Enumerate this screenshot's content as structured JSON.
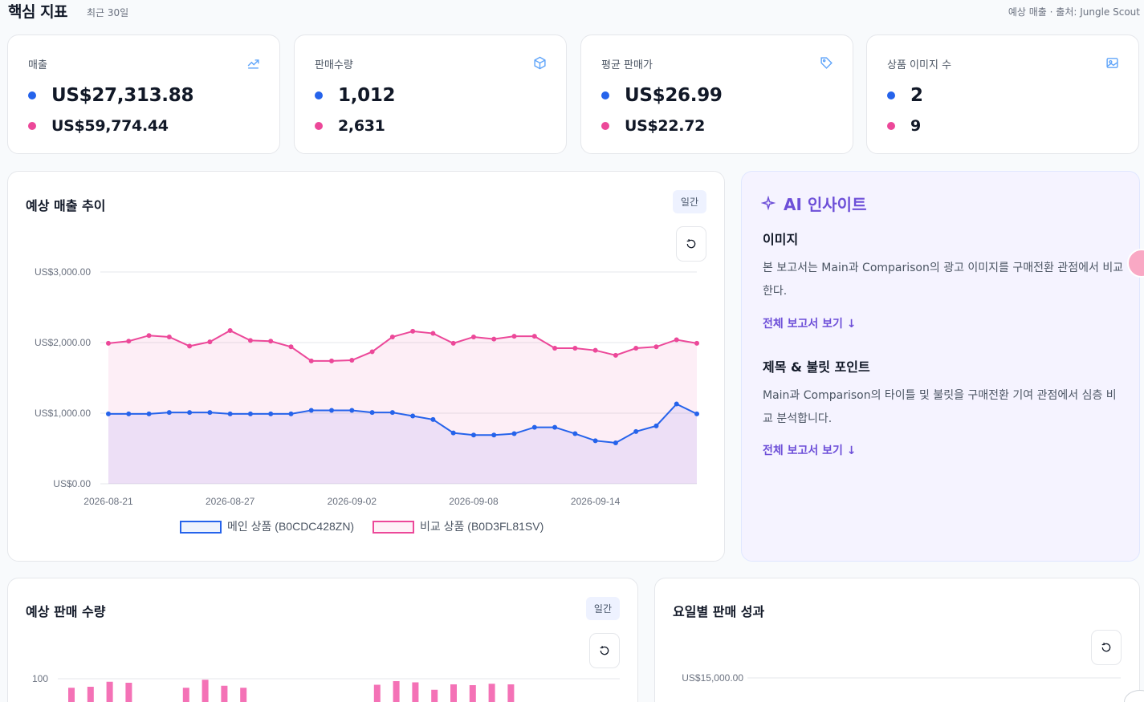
{
  "header": {
    "title": "핵심 지표",
    "subtitle": "최근 30일",
    "source": "예상 매출 · 출처: Jungle Scout"
  },
  "colors": {
    "main": "#2563eb",
    "comparison": "#ec4899",
    "accent": "#6d4fd8"
  },
  "kpis": [
    {
      "label": "매출",
      "icon": "trending-up-icon",
      "main": "US$27,313.88",
      "comparison": "US$59,774.44"
    },
    {
      "label": "판매수량",
      "icon": "box-icon",
      "main": "1,012",
      "comparison": "2,631"
    },
    {
      "label": "평균 판매가",
      "icon": "tag-icon",
      "main": "US$26.99",
      "comparison": "US$22.72"
    },
    {
      "label": "상품 이미지 수",
      "icon": "image-icon",
      "main": "2",
      "comparison": "9"
    }
  ],
  "revenue_chart": {
    "title": "예상 매출 추이",
    "badge": "일간",
    "reset_icon": "refresh-icon"
  },
  "ai": {
    "title": "AI 인사이트",
    "sections": [
      {
        "heading": "이미지",
        "body": "본 보고서는 Main과 Comparison의 광고 이미지를 구매전환 관점에서 비교한다.",
        "link": "전체 보고서 보기 ↓"
      },
      {
        "heading": "제목 & 불릿 포인트",
        "body": "Main과 Comparison의 타이틀 및 불릿을 구매전환 기여 관점에서 심층 비교 분석합니다.",
        "link": "전체 보고서 보기 ↓"
      }
    ]
  },
  "units_chart": {
    "title": "예상 판매 수량",
    "badge": "일간"
  },
  "weekday_chart": {
    "title": "요일별 판매 성과"
  },
  "chart_data": [
    {
      "type": "area",
      "x": [
        "2026-08-21",
        "2026-08-22",
        "2026-08-23",
        "2026-08-24",
        "2026-08-25",
        "2026-08-26",
        "2026-08-27",
        "2026-08-28",
        "2026-08-29",
        "2026-08-30",
        "2026-08-31",
        "2026-09-01",
        "2026-09-02",
        "2026-09-03",
        "2026-09-04",
        "2026-09-05",
        "2026-09-06",
        "2026-09-07",
        "2026-09-08",
        "2026-09-09",
        "2026-09-10",
        "2026-09-11",
        "2026-09-12",
        "2026-09-13",
        "2026-09-14",
        "2026-09-15",
        "2026-09-16",
        "2026-09-17",
        "2026-09-18",
        "2026-09-19"
      ],
      "xticks": [
        "2026-08-21",
        "2026-08-27",
        "2026-09-02",
        "2026-09-08",
        "2026-09-14"
      ],
      "yticks": [
        "US$0.00",
        "US$1,000.00",
        "US$2,000.00",
        "US$3,000.00"
      ],
      "ylim": [
        0,
        3000
      ],
      "series": [
        {
          "name": "메인 상품 (B0CDC428ZN)",
          "values": [
            990,
            990,
            990,
            1010,
            1010,
            1010,
            990,
            990,
            990,
            990,
            1040,
            1040,
            1040,
            1010,
            1010,
            960,
            910,
            720,
            690,
            690,
            710,
            800,
            800,
            710,
            610,
            580,
            740,
            820,
            1130,
            990
          ]
        },
        {
          "name": "비교 상품 (B0D3FL81SV)",
          "values": [
            1990,
            2020,
            2100,
            2080,
            1950,
            2010,
            2170,
            2030,
            2020,
            1940,
            1740,
            1740,
            1750,
            1870,
            2080,
            2160,
            2130,
            1990,
            2080,
            2050,
            2090,
            2090,
            1920,
            1920,
            1890,
            1820,
            1920,
            1940,
            2040,
            1990
          ]
        }
      ],
      "legend": "bottom"
    },
    {
      "type": "bar",
      "yticks": [
        "100"
      ],
      "visible_values": [
        55,
        60,
        85,
        80,
        0,
        0,
        55,
        95,
        65,
        55,
        0,
        0,
        0,
        0,
        0,
        0,
        70,
        88,
        82,
        45,
        72,
        68,
        75,
        72
      ]
    },
    {
      "type": "bar",
      "yticks": [
        "US$15,000.00"
      ]
    }
  ]
}
